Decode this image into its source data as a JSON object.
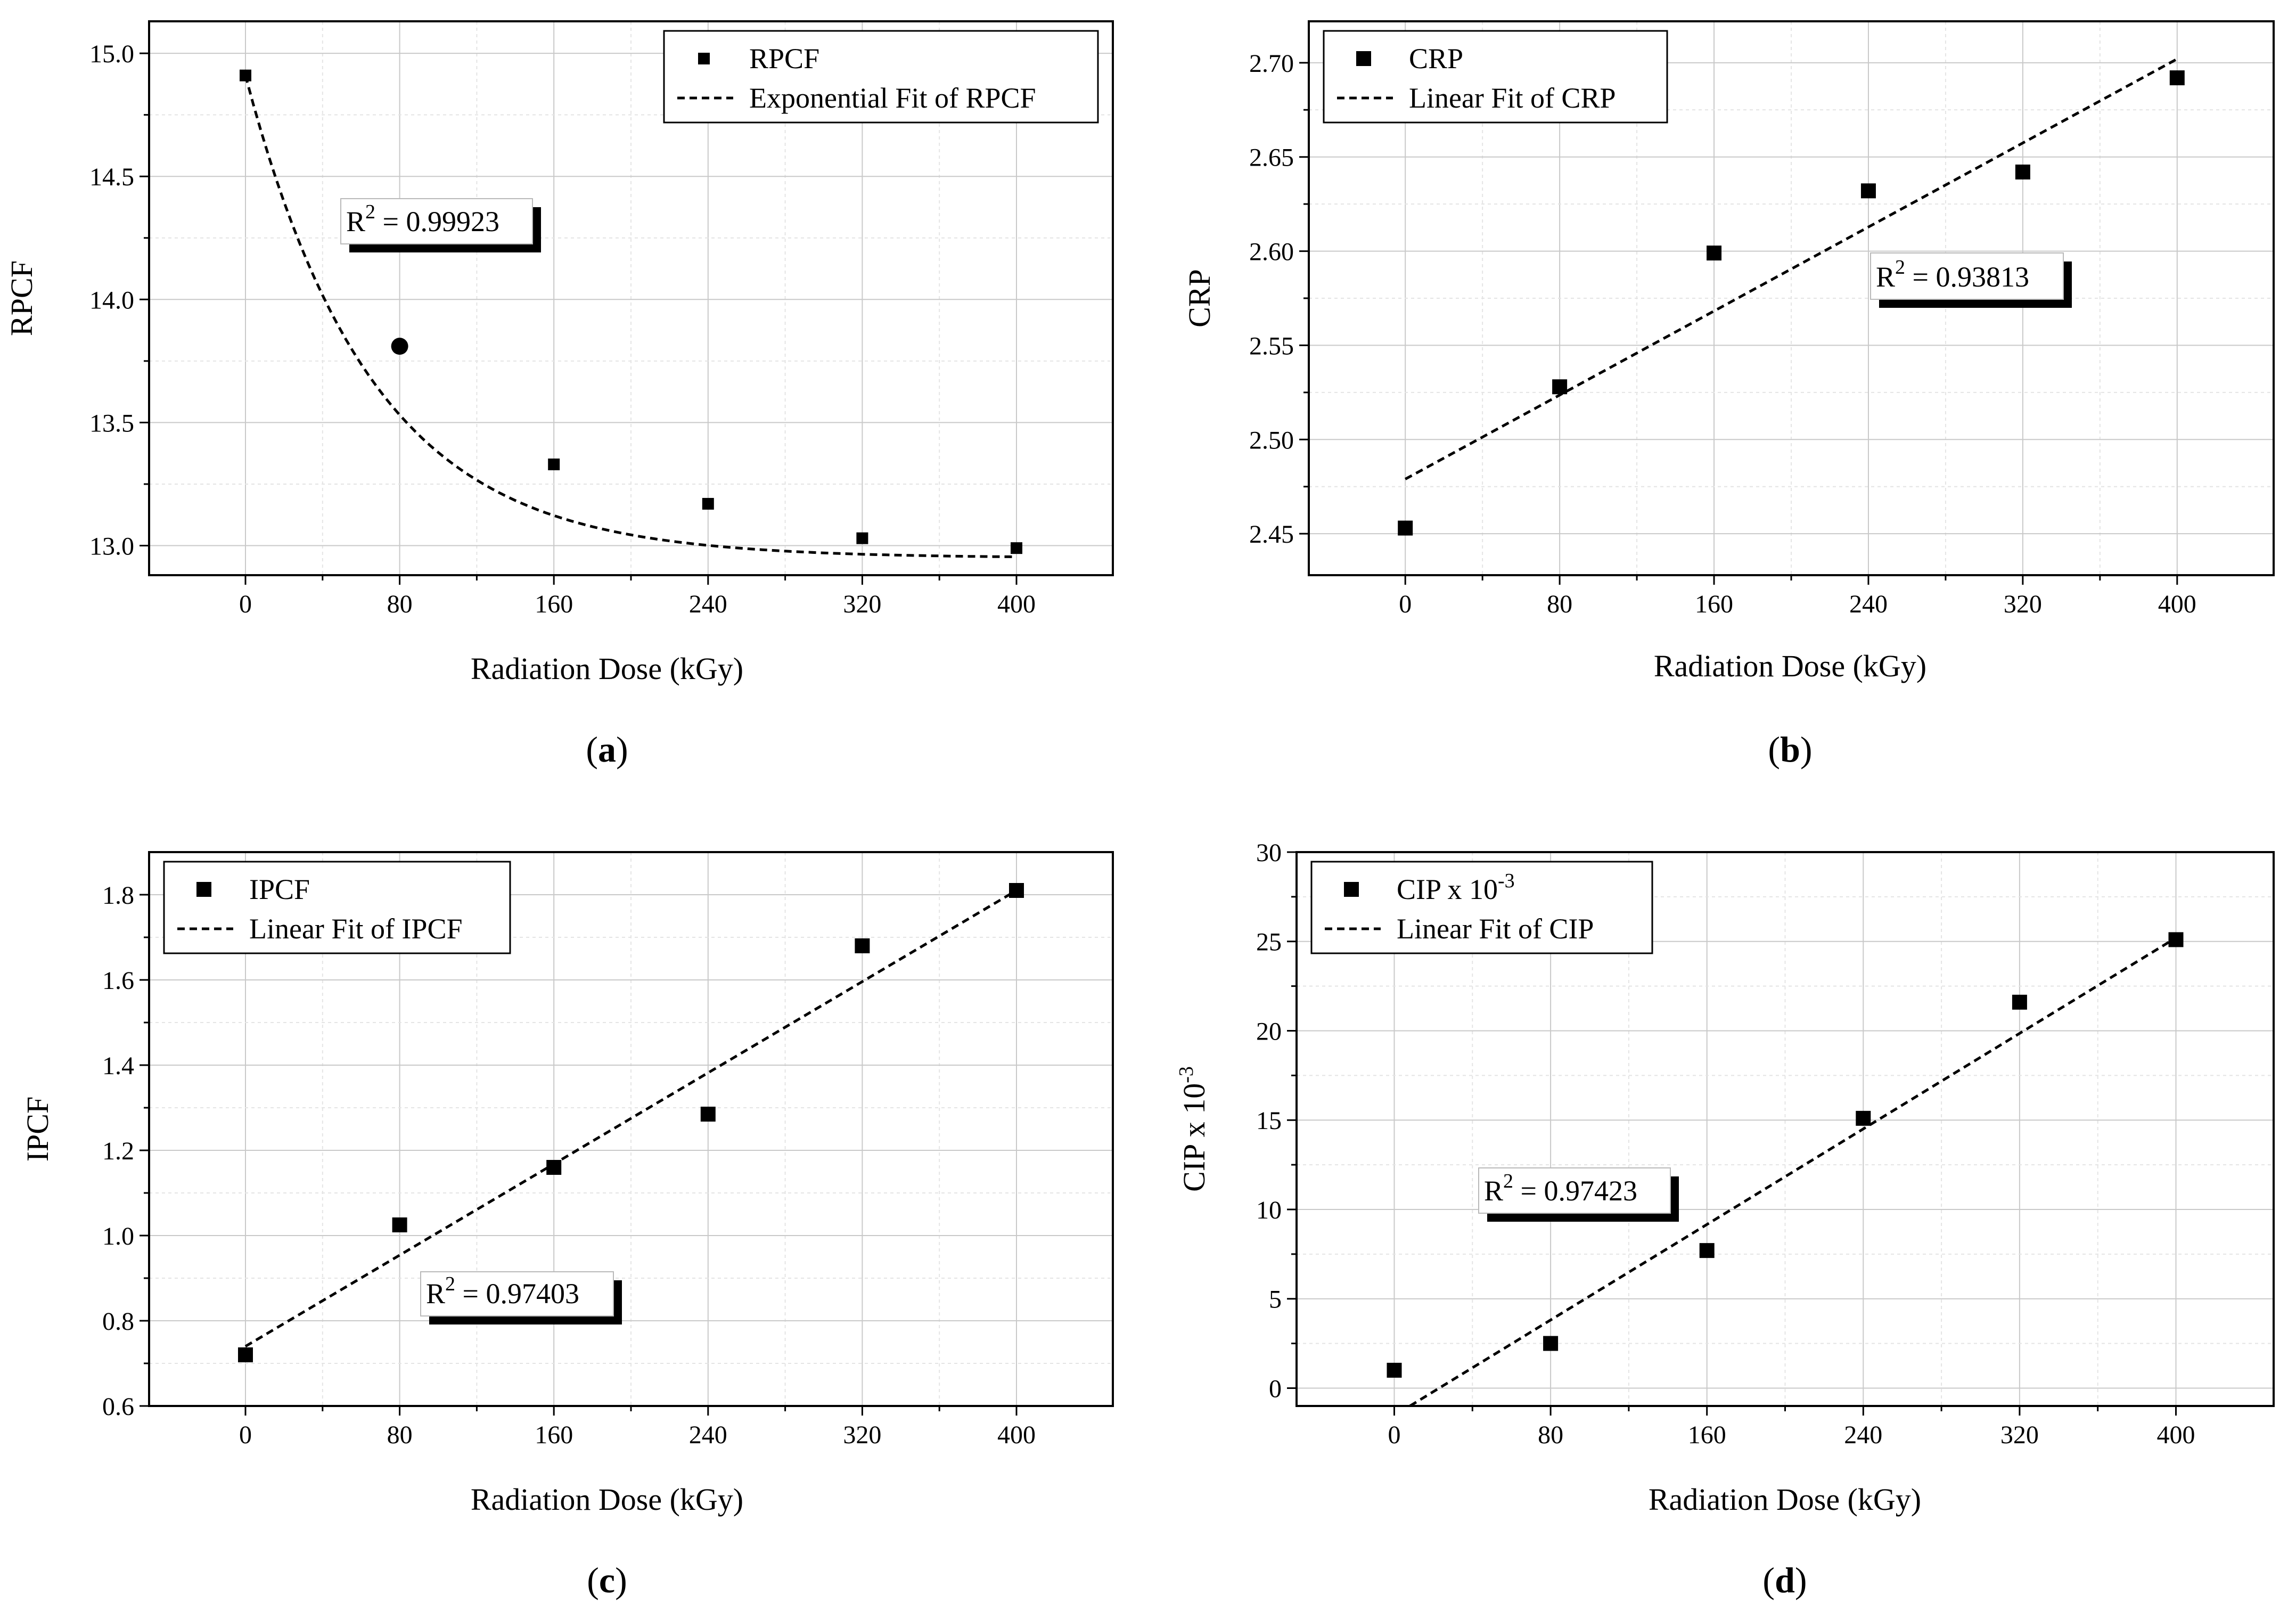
{
  "chart_data": [
    {
      "type": "scatter",
      "panel_label": "a",
      "xlabel": "Radiation Dose (kGy)",
      "ylabel": "RPCF",
      "xlim": [
        -50,
        450
      ],
      "ylim": [
        12.88,
        15.13
      ],
      "xticks": [
        0,
        80,
        160,
        240,
        320,
        400
      ],
      "yticks": [
        13.0,
        13.5,
        14.0,
        14.5,
        15.0
      ],
      "ytick_labels": [
        "13.0",
        "13.5",
        "14.0",
        "14.5",
        "15.0"
      ],
      "grid": true,
      "legend_position": "top-right",
      "series": [
        {
          "name": "RPCF",
          "x": [
            0,
            80,
            160,
            240,
            320,
            400
          ],
          "y": [
            14.91,
            13.81,
            13.33,
            13.17,
            13.03,
            12.99
          ]
        },
        {
          "name": "Exponential Fit of RPCF",
          "fit": "exponential",
          "a": 12.95,
          "b": 1.96,
          "k": 0.0152
        }
      ],
      "r2_label": "R",
      "r2_sup": "2",
      "r2_value": " = 0.99923"
    },
    {
      "type": "scatter",
      "panel_label": "b",
      "xlabel": "Radiation Dose (kGy)",
      "ylabel": "CRP",
      "xlim": [
        -50,
        450
      ],
      "ylim": [
        2.428,
        2.722
      ],
      "xticks": [
        0,
        80,
        160,
        240,
        320,
        400
      ],
      "yticks": [
        2.45,
        2.5,
        2.55,
        2.6,
        2.65,
        2.7
      ],
      "ytick_labels": [
        "2.45",
        "2.50",
        "2.55",
        "2.60",
        "2.65",
        "2.70"
      ],
      "grid": true,
      "legend_position": "top-left",
      "series": [
        {
          "name": "CRP",
          "x": [
            0,
            80,
            160,
            240,
            320,
            400
          ],
          "y": [
            2.453,
            2.528,
            2.599,
            2.632,
            2.642,
            2.692
          ]
        },
        {
          "name": "Linear Fit of CRP",
          "fit": "linear",
          "x0": 0,
          "x1": 400,
          "y0": 2.479,
          "y1": 2.702
        }
      ],
      "r2_label": "R",
      "r2_sup": "2",
      "r2_value": " = 0.93813"
    },
    {
      "type": "scatter",
      "panel_label": "c",
      "xlabel": "Radiation Dose (kGy)",
      "ylabel": "IPCF",
      "xlim": [
        -50,
        450
      ],
      "ylim": [
        0.6,
        1.9
      ],
      "xticks": [
        0,
        80,
        160,
        240,
        320,
        400
      ],
      "yticks": [
        0.6,
        0.8,
        1.0,
        1.2,
        1.4,
        1.6,
        1.8
      ],
      "ytick_labels": [
        "0.6",
        "0.8",
        "1.0",
        "1.2",
        "1.4",
        "1.6",
        "1.8"
      ],
      "grid": true,
      "legend_position": "top-left",
      "series": [
        {
          "name": "IPCF",
          "x": [
            0,
            80,
            160,
            240,
            320,
            400
          ],
          "y": [
            0.72,
            1.025,
            1.16,
            1.285,
            1.68,
            1.81
          ]
        },
        {
          "name": "Linear Fit of IPCF",
          "fit": "linear",
          "x0": 0,
          "x1": 400,
          "y0": 0.74,
          "y1": 1.81
        }
      ],
      "r2_label": "R",
      "r2_sup": "2",
      "r2_value": " = 0.97403"
    },
    {
      "type": "scatter",
      "panel_label": "d",
      "xlabel": "Radiation Dose (kGy)",
      "ylabel": "CIP x 10",
      "ylabel_sup": "-3",
      "xlim": [
        -50,
        450
      ],
      "ylim": [
        -1,
        30
      ],
      "xticks": [
        0,
        80,
        160,
        240,
        320,
        400
      ],
      "yticks": [
        0,
        5,
        10,
        15,
        20,
        25,
        30
      ],
      "ytick_labels": [
        "0",
        "5",
        "10",
        "15",
        "20",
        "25",
        "30"
      ],
      "grid": true,
      "legend_position": "top-left",
      "series": [
        {
          "name": "CIP x 10",
          "name_sup": "-3",
          "x": [
            0,
            80,
            160,
            240,
            320,
            400
          ],
          "y": [
            1.0,
            2.5,
            7.7,
            15.1,
            21.6,
            25.1
          ]
        },
        {
          "name": "Linear Fit of CIP",
          "fit": "linear",
          "x0": 8,
          "x1": 400,
          "y0": -1,
          "y1": 25.2
        }
      ],
      "r2_label": "R",
      "r2_sup": "2",
      "r2_value": " = 0.97423"
    }
  ]
}
